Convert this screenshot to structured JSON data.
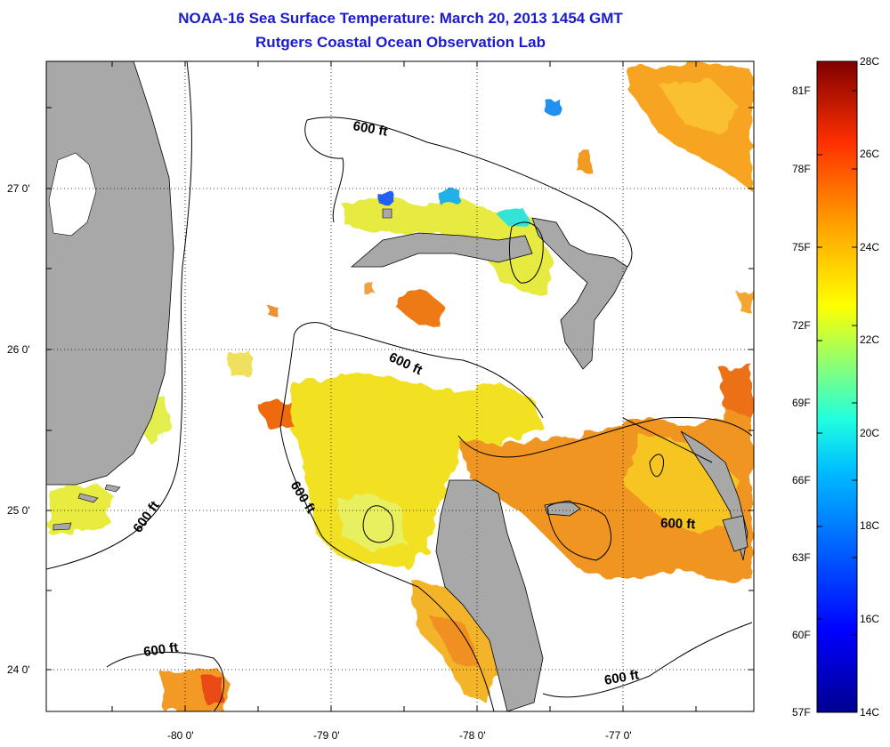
{
  "header": {
    "title": "NOAA-16 Sea Surface Temperature:  March 20, 2013 1454 GMT",
    "subtitle": "Rutgers Coastal Ocean Observation Lab"
  },
  "axes": {
    "x_ticks": [
      "-80 0'",
      "-79 0'",
      "-78 0'",
      "-77 0'"
    ],
    "y_ticks": [
      "27 0'",
      "26 0'",
      "25 0'",
      "24 0'"
    ]
  },
  "isobaths": {
    "label": "600 ft"
  },
  "colorbar": {
    "celsius": [
      "28C",
      "26C",
      "24C",
      "22C",
      "20C",
      "18C",
      "16C",
      "14C"
    ],
    "fahrenheit": [
      "81F",
      "78F",
      "75F",
      "72F",
      "69F",
      "66F",
      "63F",
      "60F",
      "57F"
    ],
    "range_c": [
      14,
      28
    ],
    "colormap": "jet"
  },
  "colors": {
    "title": "#1a1ad0",
    "land": "#a8a8a8",
    "no_data": "#ffffff"
  }
}
